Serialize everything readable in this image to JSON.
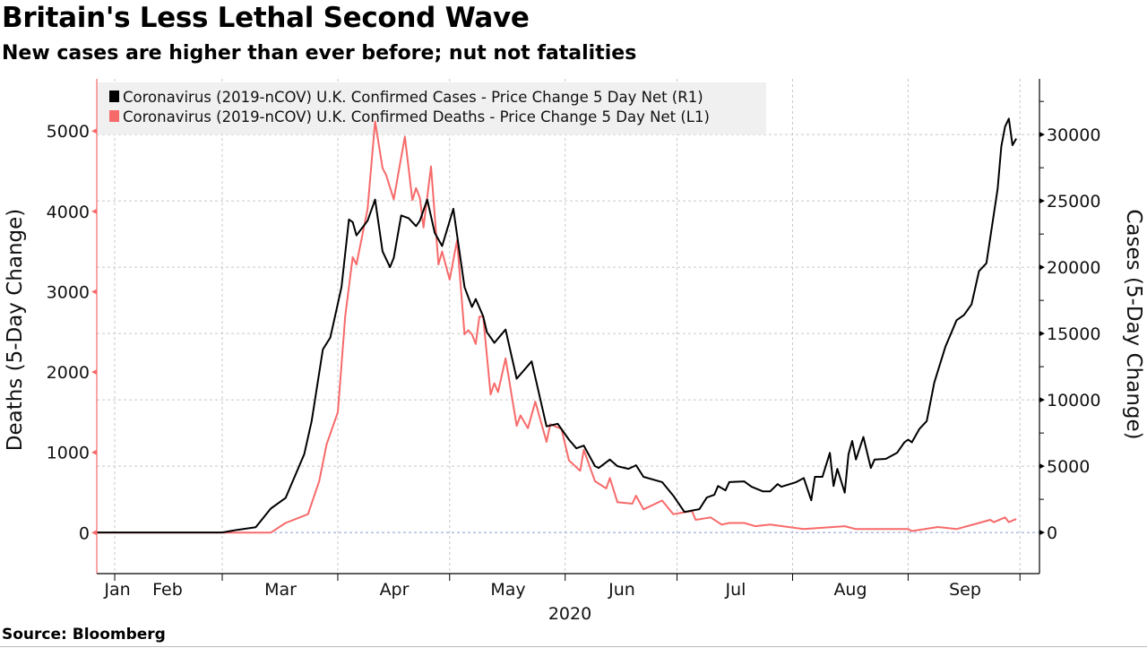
{
  "title": "Britain's Less Lethal Second Wave",
  "subtitle": "New cases are higher than ever before; nut not fatalities",
  "source": "Source: Bloomberg",
  "colors": {
    "cases": "#000000",
    "deaths": "#f76a6a",
    "legend_bg": "#f0f0f0",
    "grid": "#c8c8c8"
  },
  "chart_data": {
    "type": "line",
    "title": "Britain's Less Lethal Second Wave",
    "subtitle": "New cases are higher than ever before; nut not fatalities",
    "x_unit": "day of year 2020",
    "xlabel": "2020",
    "x_tick_labels": [
      "Jan",
      "Feb",
      "Mar",
      "Apr",
      "May",
      "Jun",
      "Jul",
      "Aug",
      "Sep"
    ],
    "ylabel_left": "Deaths (5-Day Change)",
    "ylabel_right": "Cases (5-Day Change)",
    "ylim_left": [
      -510,
      5650
    ],
    "ylim_right": [
      -3100,
      34200
    ],
    "yticks_left": [
      "0",
      "1000",
      "2000",
      "3000",
      "4000",
      "5000"
    ],
    "yticks_right": [
      "0",
      "5000",
      "10000",
      "15000",
      "20000",
      "25000",
      "30000"
    ],
    "grid": true,
    "legend_position": "top-left",
    "series": [
      {
        "name": "Coronavirus (2019-nCOV) U.K. Confirmed Cases - Price Change 5 Day Net (R1)",
        "axis": "right",
        "points": [
          [
            22,
            0
          ],
          [
            61,
            0
          ],
          [
            65,
            200
          ],
          [
            70,
            400
          ],
          [
            74,
            1800
          ],
          [
            78,
            2600
          ],
          [
            83,
            5900
          ],
          [
            85,
            8400
          ],
          [
            88,
            13800
          ],
          [
            90,
            14700
          ],
          [
            93,
            18500
          ],
          [
            95,
            23600
          ],
          [
            96,
            23400
          ],
          [
            97,
            22400
          ],
          [
            100,
            23500
          ],
          [
            102,
            25100
          ],
          [
            104,
            21200
          ],
          [
            106,
            20000
          ],
          [
            107,
            20700
          ],
          [
            109,
            23900
          ],
          [
            111,
            23700
          ],
          [
            113,
            23100
          ],
          [
            114,
            23500
          ],
          [
            116,
            25100
          ],
          [
            118,
            22600
          ],
          [
            120,
            21600
          ],
          [
            123,
            24400
          ],
          [
            126,
            18500
          ],
          [
            128,
            17000
          ],
          [
            129,
            17600
          ],
          [
            131,
            16300
          ],
          [
            132,
            15100
          ],
          [
            134,
            14300
          ],
          [
            137,
            15300
          ],
          [
            140,
            11600
          ],
          [
            144,
            12900
          ],
          [
            148,
            8000
          ],
          [
            151,
            8200
          ],
          [
            154,
            7000
          ],
          [
            156,
            6350
          ],
          [
            158,
            6550
          ],
          [
            161,
            5000
          ],
          [
            162,
            4870
          ],
          [
            165,
            5500
          ],
          [
            167,
            5000
          ],
          [
            170,
            4800
          ],
          [
            172,
            5070
          ],
          [
            174,
            4200
          ],
          [
            179,
            3800
          ],
          [
            182,
            2770
          ],
          [
            185,
            1550
          ],
          [
            189,
            1760
          ],
          [
            191,
            2640
          ],
          [
            193,
            2840
          ],
          [
            194,
            3500
          ],
          [
            196,
            3180
          ],
          [
            197,
            3800
          ],
          [
            201,
            3850
          ],
          [
            203,
            3450
          ],
          [
            206,
            3100
          ],
          [
            208,
            3100
          ],
          [
            210,
            3650
          ],
          [
            211,
            3450
          ],
          [
            215,
            3800
          ],
          [
            217,
            4100
          ],
          [
            219,
            2430
          ],
          [
            220,
            4200
          ],
          [
            222,
            4200
          ],
          [
            224,
            6000
          ],
          [
            225,
            3500
          ],
          [
            226,
            4800
          ],
          [
            228,
            3000
          ],
          [
            229,
            5900
          ],
          [
            230,
            6900
          ],
          [
            231,
            5500
          ],
          [
            233,
            7200
          ],
          [
            235,
            4870
          ],
          [
            236,
            5500
          ],
          [
            239,
            5550
          ],
          [
            242,
            6000
          ],
          [
            244,
            6800
          ],
          [
            245,
            7000
          ],
          [
            246,
            6800
          ],
          [
            248,
            7800
          ],
          [
            250,
            8400
          ],
          [
            252,
            11300
          ],
          [
            255,
            14000
          ],
          [
            258,
            16000
          ],
          [
            260,
            16400
          ],
          [
            262,
            17200
          ],
          [
            264,
            19700
          ],
          [
            266,
            20300
          ],
          [
            269,
            25900
          ],
          [
            270,
            29100
          ],
          [
            271,
            30600
          ],
          [
            272,
            31200
          ],
          [
            273,
            29200
          ],
          [
            274,
            29700
          ]
        ]
      },
      {
        "name": "Coronavirus (2019-nCOV) U.K. Confirmed Deaths - Price Change 5 Day Net (L1)",
        "axis": "left",
        "points": [
          [
            22,
            0
          ],
          [
            61,
            0
          ],
          [
            74,
            0
          ],
          [
            78,
            120
          ],
          [
            84,
            230
          ],
          [
            87,
            640
          ],
          [
            89,
            1100
          ],
          [
            92,
            1500
          ],
          [
            94,
            2700
          ],
          [
            96,
            3430
          ],
          [
            97,
            3340
          ],
          [
            100,
            4030
          ],
          [
            102,
            5120
          ],
          [
            104,
            4540
          ],
          [
            105,
            4450
          ],
          [
            107,
            4150
          ],
          [
            110,
            4930
          ],
          [
            112,
            4140
          ],
          [
            113,
            4290
          ],
          [
            114,
            4170
          ],
          [
            115,
            3800
          ],
          [
            117,
            4560
          ],
          [
            119,
            3340
          ],
          [
            120,
            3500
          ],
          [
            122,
            3150
          ],
          [
            124,
            3640
          ],
          [
            126,
            2470
          ],
          [
            127,
            2520
          ],
          [
            128,
            2470
          ],
          [
            129,
            2350
          ],
          [
            130,
            2690
          ],
          [
            131,
            2690
          ],
          [
            133,
            1720
          ],
          [
            134,
            1860
          ],
          [
            135,
            1750
          ],
          [
            137,
            2170
          ],
          [
            140,
            1330
          ],
          [
            141,
            1460
          ],
          [
            143,
            1300
          ],
          [
            145,
            1630
          ],
          [
            148,
            1130
          ],
          [
            149,
            1350
          ],
          [
            152,
            1290
          ],
          [
            154,
            900
          ],
          [
            157,
            770
          ],
          [
            158,
            1030
          ],
          [
            161,
            640
          ],
          [
            164,
            550
          ],
          [
            165,
            680
          ],
          [
            167,
            380
          ],
          [
            171,
            360
          ],
          [
            172,
            460
          ],
          [
            174,
            290
          ],
          [
            179,
            400
          ],
          [
            182,
            230
          ],
          [
            187,
            270
          ],
          [
            188,
            160
          ],
          [
            192,
            190
          ],
          [
            195,
            100
          ],
          [
            197,
            120
          ],
          [
            201,
            120
          ],
          [
            204,
            80
          ],
          [
            208,
            100
          ],
          [
            217,
            45
          ],
          [
            228,
            80
          ],
          [
            231,
            45
          ],
          [
            245,
            45
          ],
          [
            246,
            20
          ],
          [
            253,
            70
          ],
          [
            258,
            45
          ],
          [
            264,
            120
          ],
          [
            267,
            160
          ],
          [
            268,
            130
          ],
          [
            271,
            190
          ],
          [
            272,
            130
          ],
          [
            274,
            170
          ]
        ]
      }
    ]
  }
}
